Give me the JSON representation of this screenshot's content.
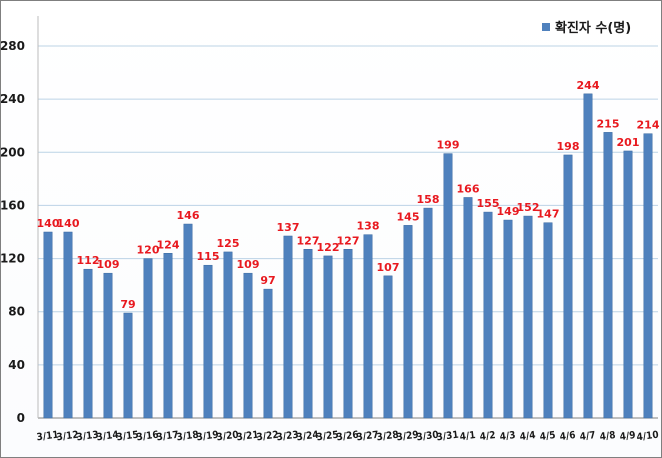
{
  "colors": {
    "bar": "#4f81bd",
    "bar_edge": "#3b6aa0",
    "value_label": "#e8191f",
    "grid": "#bcd3e6"
  },
  "legend": {
    "label": "확진자 수(명)",
    "placement": "top-right"
  },
  "chart_data": {
    "type": "bar",
    "title": "",
    "xlabel": "",
    "ylabel": "",
    "ylim": [
      0,
      280
    ],
    "yticks": [
      0,
      40,
      80,
      120,
      160,
      200,
      240,
      280
    ],
    "grid": true,
    "categories": [
      "3/11",
      "3/12",
      "3/13",
      "3/14",
      "3/15",
      "3/16",
      "3/17",
      "3/18",
      "3/19",
      "3/20",
      "3/21",
      "3/22",
      "3/23",
      "3/24",
      "3/25",
      "3/26",
      "3/27",
      "3/28",
      "3/29",
      "3/30",
      "3/31",
      "4/1",
      "4/2",
      "4/3",
      "4/4",
      "4/5",
      "4/6",
      "4/7",
      "4/8",
      "4/9",
      "4/10"
    ],
    "series": [
      {
        "name": "확진자 수(명)",
        "values": [
          140,
          140,
          112,
          109,
          79,
          120,
          124,
          146,
          115,
          125,
          109,
          97,
          137,
          127,
          122,
          127,
          138,
          107,
          145,
          158,
          199,
          166,
          155,
          149,
          152,
          147,
          198,
          244,
          215,
          201,
          214
        ]
      }
    ]
  }
}
